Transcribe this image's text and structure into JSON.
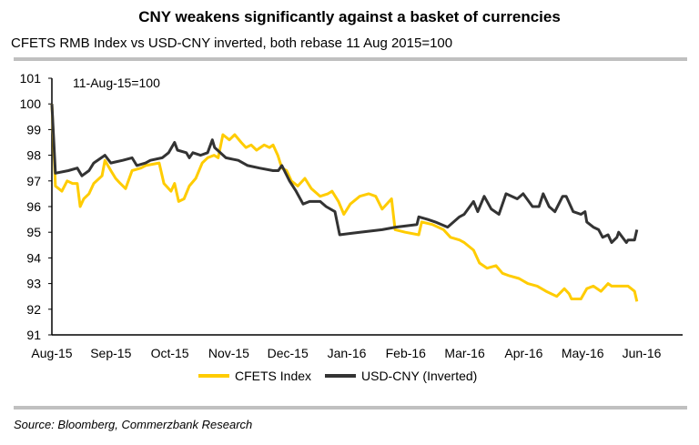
{
  "chart_data": {
    "type": "line",
    "title": "CNY weakens significantly against a basket of currencies",
    "subtitle": "CFETS RMB Index vs USD-CNY inverted, both rebase 11 Aug 2015=100",
    "annotation": "11-Aug-15=100",
    "source": "Source: Bloomberg, Commerzbank Research",
    "xlabel": "",
    "ylabel": "",
    "x_unit": "months since Aug-15",
    "x_ticks": [
      "Aug-15",
      "Sep-15",
      "Oct-15",
      "Nov-15",
      "Dec-15",
      "Jan-16",
      "Feb-16",
      "Mar-16",
      "Apr-16",
      "May-16",
      "Jun-16"
    ],
    "xlim": [
      0,
      10.7
    ],
    "ylim": [
      91,
      101
    ],
    "y_ticks": [
      91,
      92,
      93,
      94,
      95,
      96,
      97,
      98,
      99,
      100,
      101
    ],
    "grid": false,
    "legend_position": "bottom",
    "series": [
      {
        "name": "CFETS Index",
        "color": "#FFCC00",
        "points": [
          [
            0,
            100
          ],
          [
            0.06,
            96.8
          ],
          [
            0.17,
            96.6
          ],
          [
            0.26,
            97.0
          ],
          [
            0.35,
            96.9
          ],
          [
            0.43,
            96.9
          ],
          [
            0.48,
            96.0
          ],
          [
            0.54,
            96.3
          ],
          [
            0.63,
            96.5
          ],
          [
            0.71,
            96.9
          ],
          [
            0.85,
            97.2
          ],
          [
            0.9,
            97.8
          ],
          [
            1.0,
            97.4
          ],
          [
            1.08,
            97.1
          ],
          [
            1.16,
            96.9
          ],
          [
            1.25,
            96.7
          ],
          [
            1.36,
            97.4
          ],
          [
            1.51,
            97.5
          ],
          [
            1.59,
            97.6
          ],
          [
            1.82,
            97.7
          ],
          [
            1.9,
            96.9
          ],
          [
            2.02,
            96.6
          ],
          [
            2.08,
            96.9
          ],
          [
            2.15,
            96.2
          ],
          [
            2.24,
            96.3
          ],
          [
            2.33,
            96.8
          ],
          [
            2.44,
            97.1
          ],
          [
            2.55,
            97.7
          ],
          [
            2.64,
            97.9
          ],
          [
            2.75,
            98.0
          ],
          [
            2.82,
            97.9
          ],
          [
            2.9,
            98.8
          ],
          [
            3.01,
            98.6
          ],
          [
            3.1,
            98.8
          ],
          [
            3.21,
            98.5
          ],
          [
            3.29,
            98.3
          ],
          [
            3.38,
            98.4
          ],
          [
            3.47,
            98.2
          ],
          [
            3.6,
            98.4
          ],
          [
            3.69,
            98.3
          ],
          [
            3.75,
            98.4
          ],
          [
            3.83,
            98.0
          ],
          [
            3.9,
            97.5
          ],
          [
            3.98,
            97.4
          ],
          [
            4.06,
            97.0
          ],
          [
            4.17,
            96.8
          ],
          [
            4.29,
            97.1
          ],
          [
            4.4,
            96.7
          ],
          [
            4.55,
            96.4
          ],
          [
            4.68,
            96.5
          ],
          [
            4.75,
            96.6
          ],
          [
            4.86,
            96.2
          ],
          [
            4.95,
            95.7
          ],
          [
            5.06,
            96.1
          ],
          [
            5.22,
            96.4
          ],
          [
            5.37,
            96.5
          ],
          [
            5.49,
            96.4
          ],
          [
            5.6,
            95.9
          ],
          [
            5.76,
            96.3
          ],
          [
            5.82,
            95.1
          ],
          [
            5.99,
            95.0
          ],
          [
            6.22,
            94.9
          ],
          [
            6.27,
            95.4
          ],
          [
            6.45,
            95.3
          ],
          [
            6.64,
            95.1
          ],
          [
            6.76,
            94.8
          ],
          [
            6.91,
            94.7
          ],
          [
            6.99,
            94.6
          ],
          [
            7.15,
            94.3
          ],
          [
            7.25,
            93.8
          ],
          [
            7.38,
            93.6
          ],
          [
            7.53,
            93.7
          ],
          [
            7.64,
            93.4
          ],
          [
            7.76,
            93.3
          ],
          [
            7.92,
            93.2
          ],
          [
            8.07,
            93.0
          ],
          [
            8.23,
            92.9
          ],
          [
            8.38,
            92.7
          ],
          [
            8.56,
            92.5
          ],
          [
            8.69,
            92.8
          ],
          [
            8.77,
            92.6
          ],
          [
            8.81,
            92.4
          ],
          [
            8.97,
            92.4
          ],
          [
            9.07,
            92.8
          ],
          [
            9.18,
            92.9
          ],
          [
            9.31,
            92.7
          ],
          [
            9.43,
            93.0
          ],
          [
            9.49,
            92.9
          ],
          [
            9.77,
            92.9
          ],
          [
            9.88,
            92.7
          ],
          [
            9.92,
            92.3
          ]
        ]
      },
      {
        "name": "USD-CNY (Inverted)",
        "color": "#333333",
        "points": [
          [
            0,
            100
          ],
          [
            0.06,
            97.3
          ],
          [
            0.28,
            97.4
          ],
          [
            0.43,
            97.5
          ],
          [
            0.51,
            97.2
          ],
          [
            0.63,
            97.4
          ],
          [
            0.71,
            97.7
          ],
          [
            0.9,
            98.0
          ],
          [
            1.0,
            97.7
          ],
          [
            1.2,
            97.8
          ],
          [
            1.36,
            97.9
          ],
          [
            1.44,
            97.6
          ],
          [
            1.59,
            97.7
          ],
          [
            1.67,
            97.8
          ],
          [
            1.87,
            97.9
          ],
          [
            1.98,
            98.1
          ],
          [
            2.08,
            98.5
          ],
          [
            2.13,
            98.2
          ],
          [
            2.28,
            98.1
          ],
          [
            2.33,
            97.9
          ],
          [
            2.39,
            98.1
          ],
          [
            2.52,
            98.0
          ],
          [
            2.64,
            98.1
          ],
          [
            2.72,
            98.6
          ],
          [
            2.76,
            98.3
          ],
          [
            2.95,
            97.9
          ],
          [
            3.16,
            97.8
          ],
          [
            3.32,
            97.6
          ],
          [
            3.52,
            97.5
          ],
          [
            3.75,
            97.4
          ],
          [
            3.84,
            97.4
          ],
          [
            3.9,
            97.6
          ],
          [
            4.03,
            97.0
          ],
          [
            4.14,
            96.6
          ],
          [
            4.26,
            96.1
          ],
          [
            4.37,
            96.2
          ],
          [
            4.55,
            96.2
          ],
          [
            4.65,
            96.0
          ],
          [
            4.8,
            95.8
          ],
          [
            4.88,
            94.9
          ],
          [
            5.22,
            95.0
          ],
          [
            5.6,
            95.1
          ],
          [
            5.83,
            95.2
          ],
          [
            6.19,
            95.3
          ],
          [
            6.22,
            95.6
          ],
          [
            6.37,
            95.5
          ],
          [
            6.5,
            95.4
          ],
          [
            6.71,
            95.2
          ],
          [
            6.91,
            95.6
          ],
          [
            6.99,
            95.7
          ],
          [
            7.15,
            96.2
          ],
          [
            7.22,
            95.8
          ],
          [
            7.33,
            96.4
          ],
          [
            7.45,
            95.9
          ],
          [
            7.58,
            95.7
          ],
          [
            7.7,
            96.5
          ],
          [
            7.89,
            96.3
          ],
          [
            7.99,
            96.5
          ],
          [
            8.15,
            96.0
          ],
          [
            8.26,
            96.0
          ],
          [
            8.33,
            96.5
          ],
          [
            8.43,
            96.0
          ],
          [
            8.53,
            95.8
          ],
          [
            8.66,
            96.4
          ],
          [
            8.72,
            96.4
          ],
          [
            8.84,
            95.8
          ],
          [
            8.97,
            95.7
          ],
          [
            9.04,
            95.8
          ],
          [
            9.07,
            95.4
          ],
          [
            9.18,
            95.2
          ],
          [
            9.27,
            95.1
          ],
          [
            9.34,
            94.8
          ],
          [
            9.43,
            94.9
          ],
          [
            9.49,
            94.6
          ],
          [
            9.58,
            94.8
          ],
          [
            9.61,
            95.0
          ],
          [
            9.74,
            94.6
          ],
          [
            9.77,
            94.7
          ],
          [
            9.88,
            94.7
          ],
          [
            9.92,
            95.1
          ]
        ]
      }
    ]
  }
}
